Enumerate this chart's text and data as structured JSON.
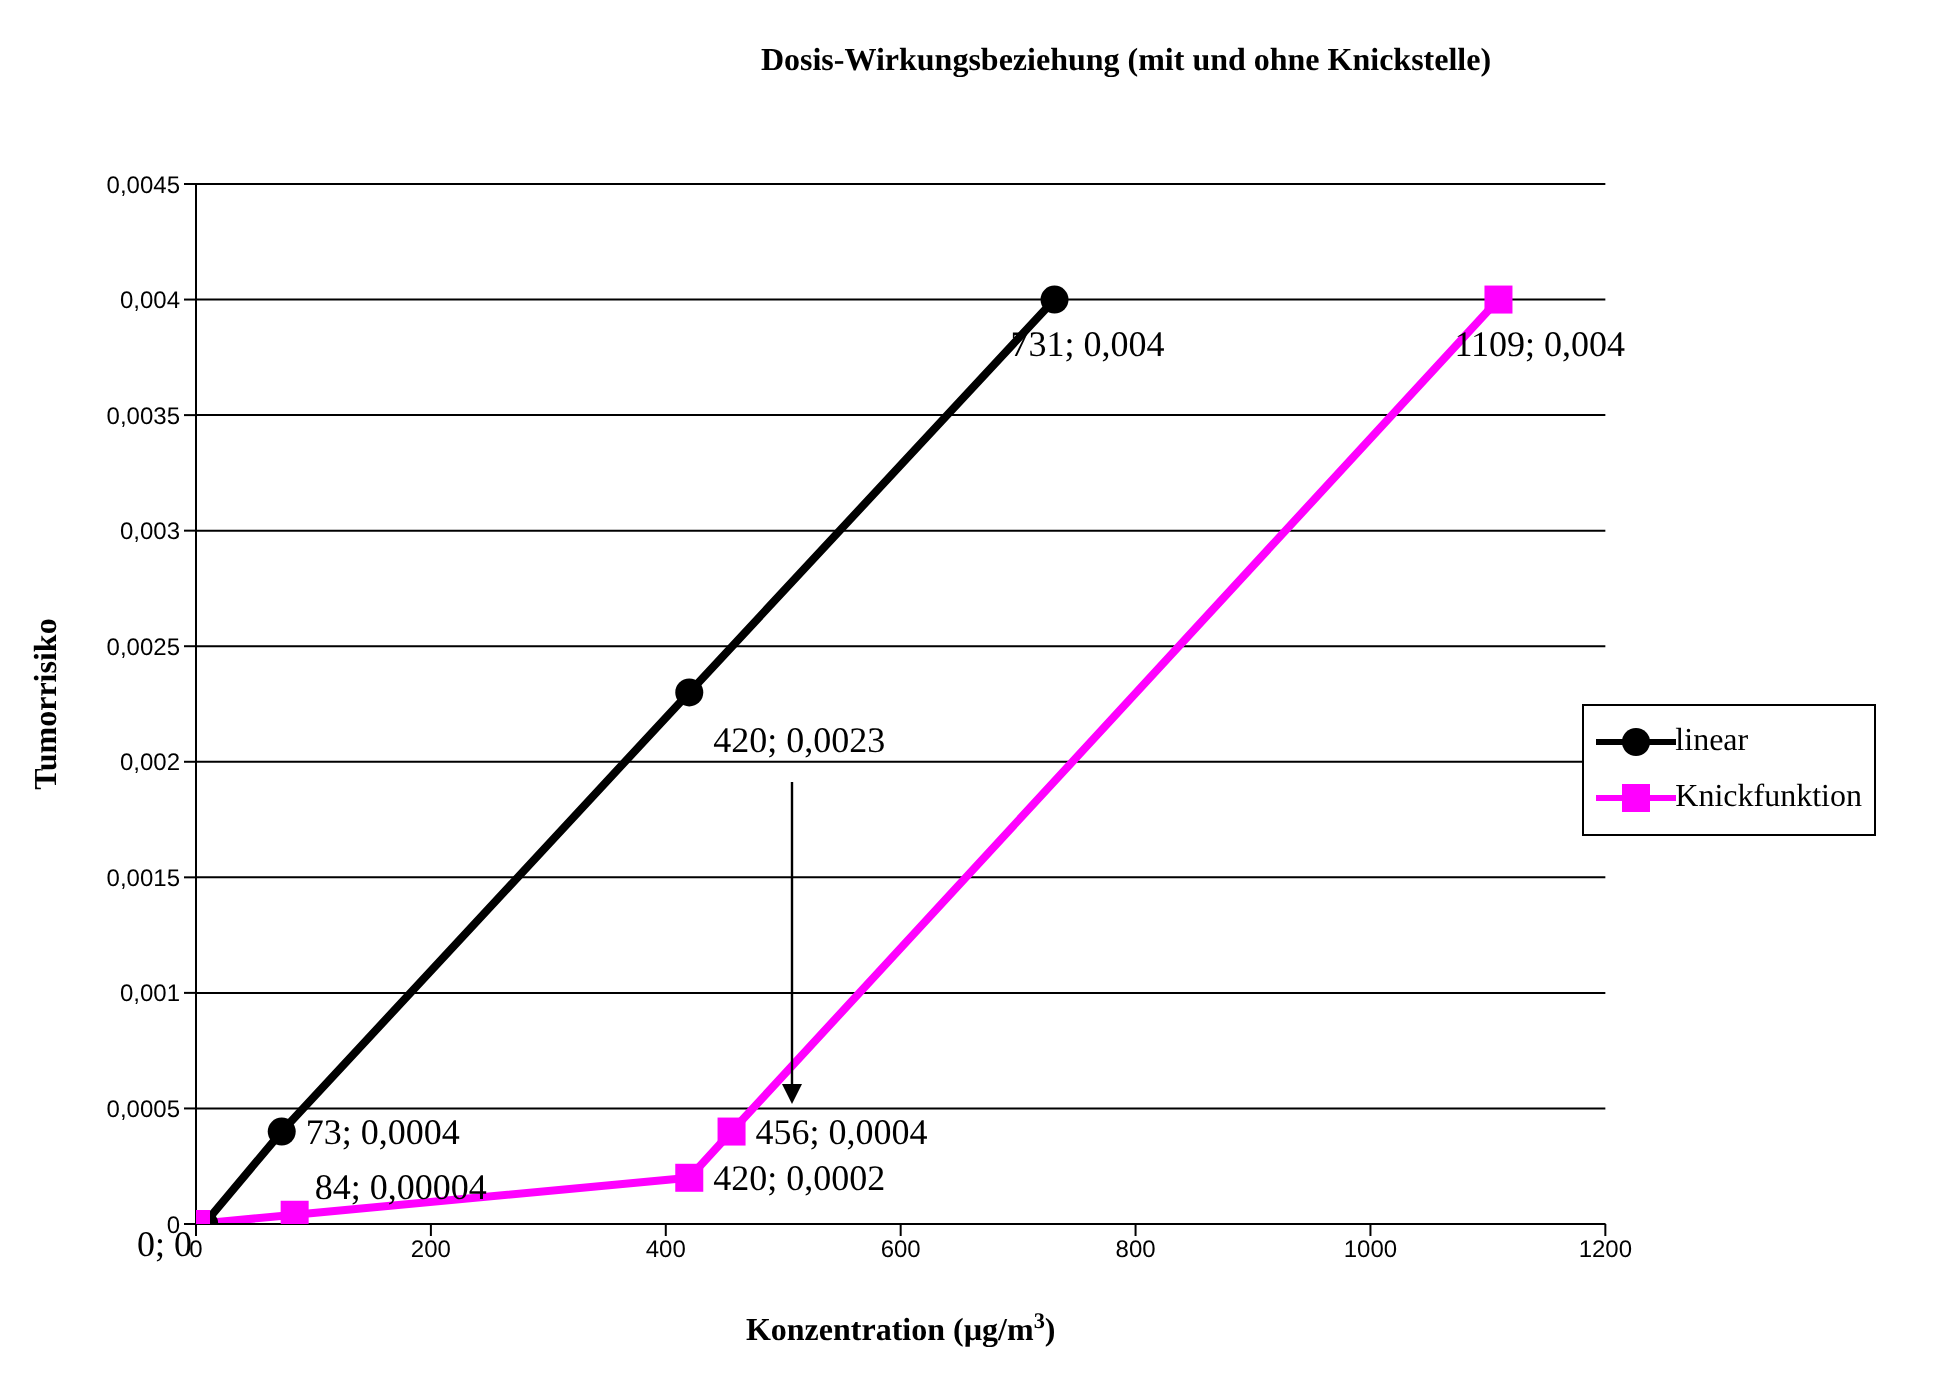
{
  "chart_data": {
    "type": "line",
    "title": "Dosis-Wirkungsbeziehung (mit und ohne Knickstelle)",
    "xlabel": "Konzentration (µg/m$^{3}$)",
    "ylabel": "Tumorrisiko",
    "series": [
      {
        "name": "linear",
        "color": "#000000",
        "marker": "circle",
        "x": [
          7,
          73,
          420,
          731
        ],
        "values": [
          0,
          0.0004,
          0.0023,
          0.004
        ],
        "value_labels": [
          null,
          "73; 0,0004",
          "420; 0,0023",
          "731; 0,004"
        ]
      },
      {
        "name": "Knickfunktion",
        "color": "#ff00ff",
        "marker": "square",
        "x": [
          0,
          84,
          420,
          456,
          1109
        ],
        "values": [
          0,
          4e-05,
          0.0002,
          0.0004,
          0.004
        ],
        "value_labels": [
          "0; 0",
          "84; 0,00004",
          "420; 0,0002",
          "456; 0,0004",
          "1109; 0,004"
        ]
      }
    ],
    "xlim": [
      0,
      1200
    ],
    "xticks": [
      0,
      200,
      400,
      600,
      800,
      1000,
      1200
    ],
    "ylim": [
      0,
      0.0045
    ],
    "yticks": [
      0,
      {
        "value": 0.0005,
        "label": "0,0005"
      },
      {
        "value": 0.001,
        "label": "0,001"
      },
      {
        "value": 0.0015,
        "label": "0,0015"
      },
      {
        "value": 0.002,
        "label": "0,002"
      },
      {
        "value": 0.0025,
        "label": "0,0025"
      },
      {
        "value": 0.003,
        "label": "0,003"
      },
      {
        "value": 0.0035,
        "label": "0,0035"
      },
      {
        "value": 0.004,
        "label": "0,004"
      },
      {
        "value": 0.0045,
        "label": "0,0045"
      }
    ],
    "grid": "y",
    "legend": "right"
  }
}
